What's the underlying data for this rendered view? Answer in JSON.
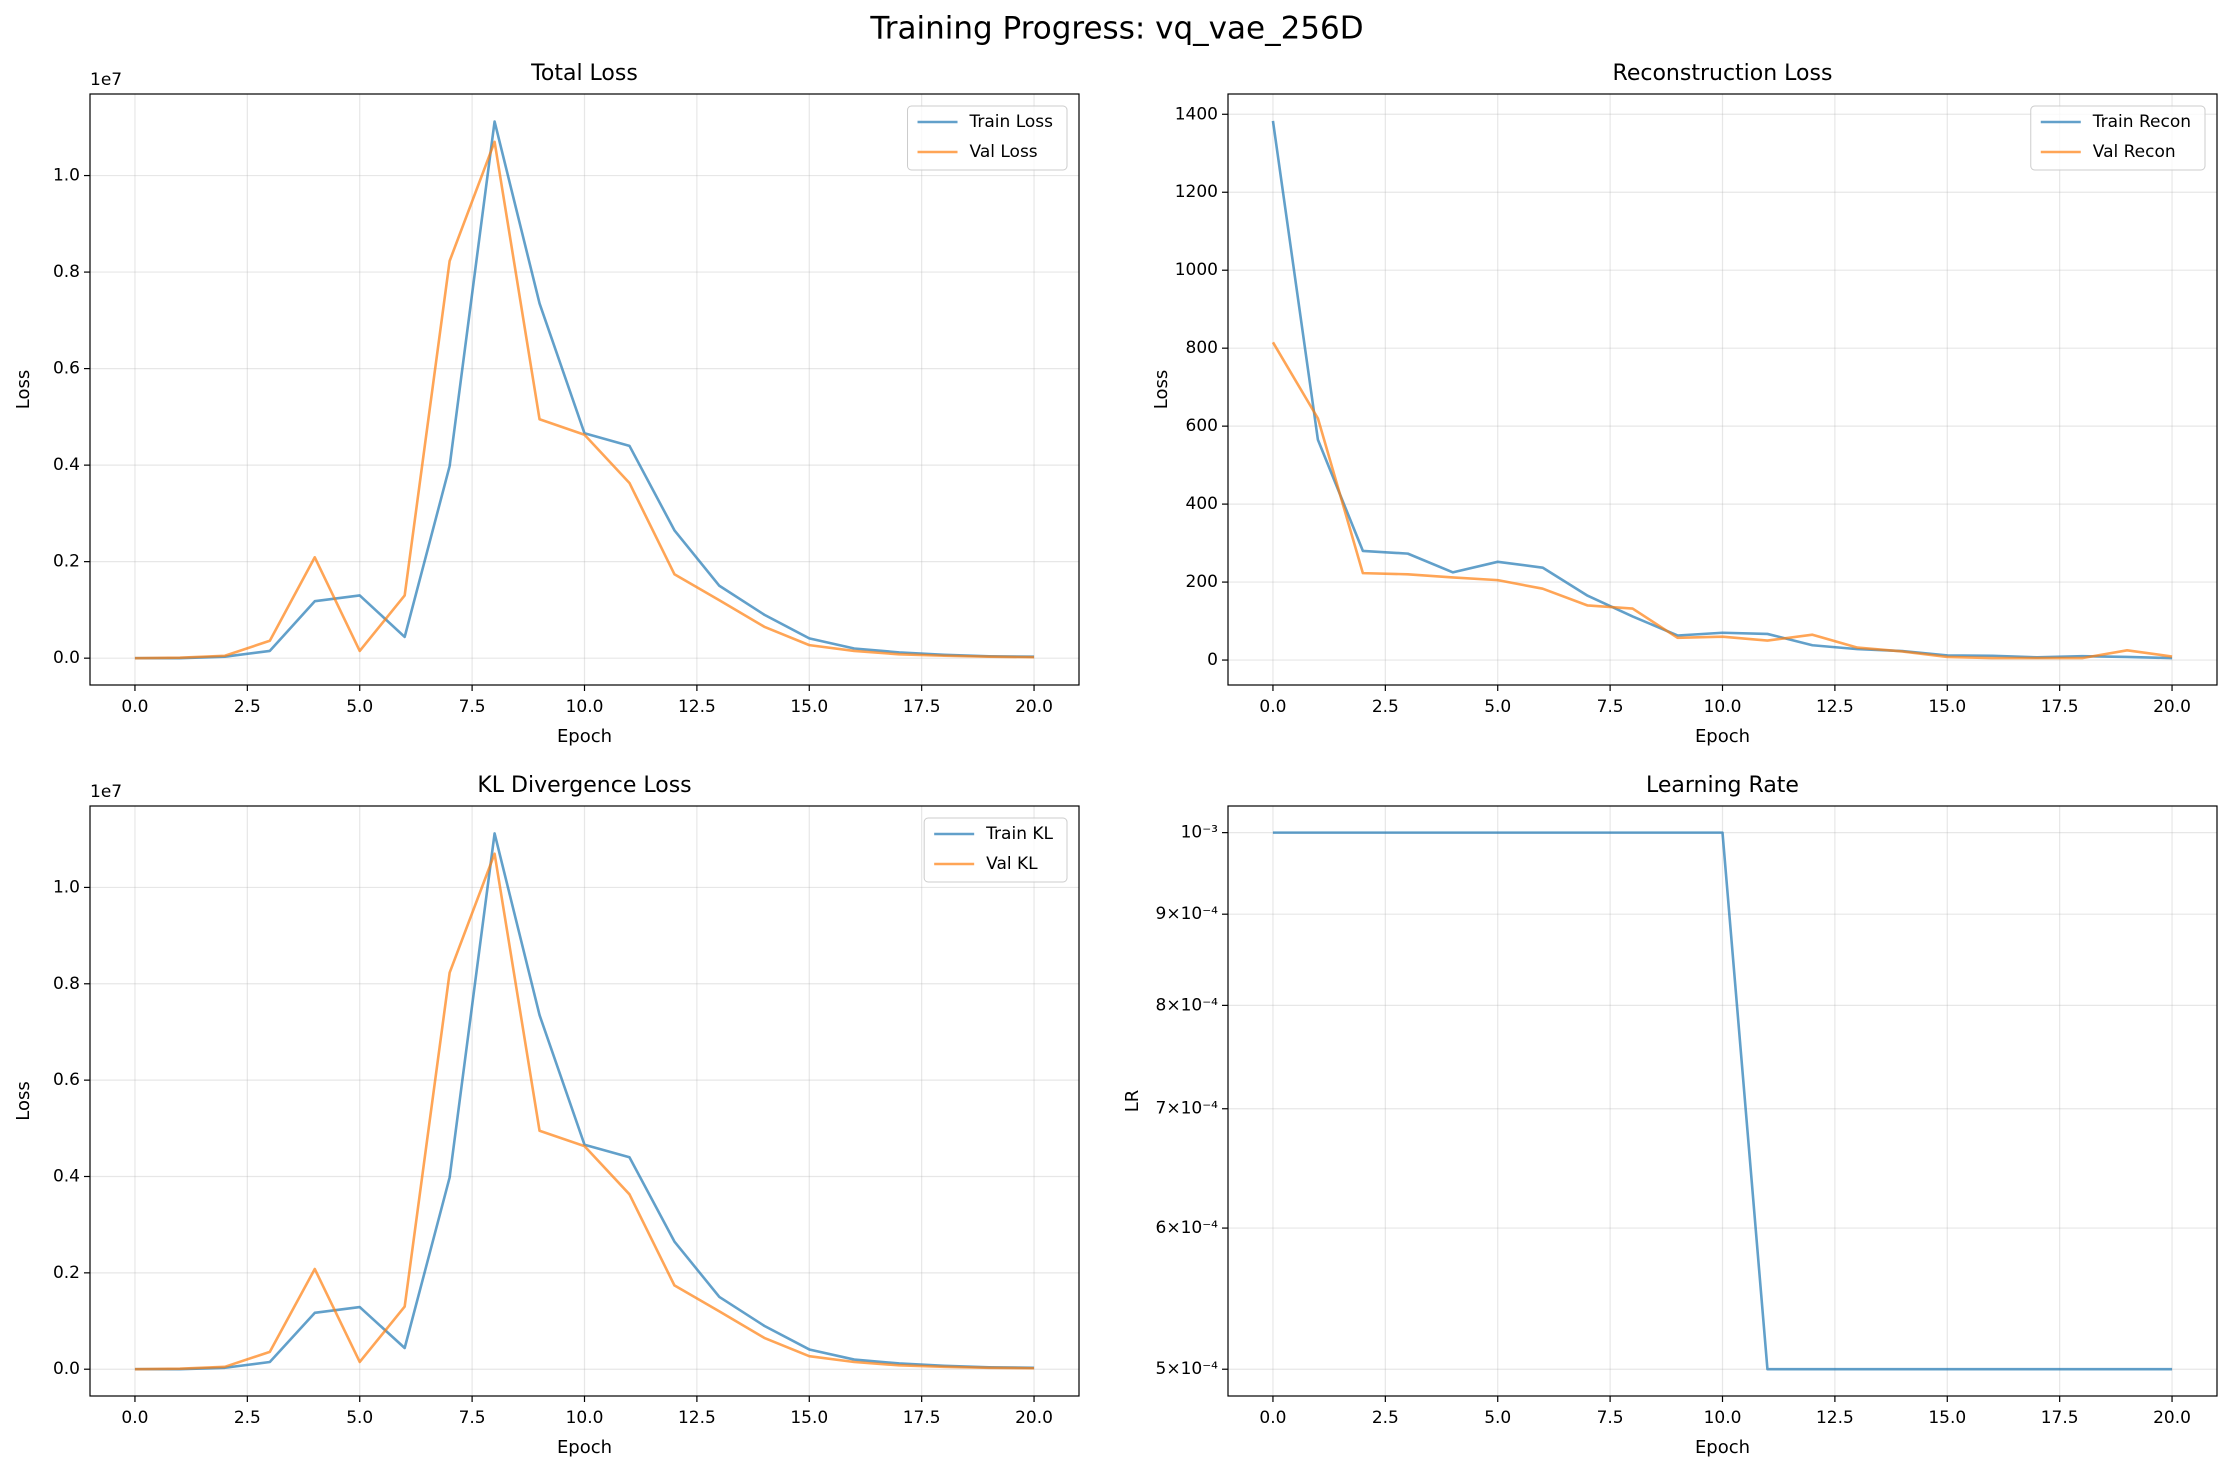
{
  "title": "Training Progress: vq_vae_256D",
  "chart_data": [
    {
      "type": "line",
      "title": "Total Loss",
      "x_label": "Epoch",
      "y_label": "Loss",
      "y_offset_label": "1e7",
      "x": [
        0,
        1,
        2,
        3,
        4,
        5,
        6,
        7,
        8,
        9,
        10,
        11,
        12,
        13,
        14,
        15,
        16,
        17,
        18,
        19,
        20
      ],
      "series": [
        {
          "name": "Train Loss",
          "color": "#1f77b4",
          "values": [
            0,
            0,
            30000,
            150000,
            1180000,
            1300000,
            440000,
            3980000,
            11120000,
            7350000,
            4660000,
            4400000,
            2650000,
            1500000,
            900000,
            410000,
            200000,
            120000,
            70000,
            40000,
            30000
          ]
        },
        {
          "name": "Val Loss",
          "color": "#ff7f0e",
          "values": [
            0,
            10000,
            50000,
            360000,
            2090000,
            150000,
            1300000,
            8230000,
            10700000,
            4950000,
            4630000,
            3630000,
            1740000,
            1200000,
            650000,
            270000,
            150000,
            80000,
            50000,
            30000,
            20000
          ]
        }
      ],
      "xlim": [
        -1,
        21
      ],
      "ylim": [
        -556000,
        11690000
      ],
      "xticks": [
        {
          "value": 0,
          "label": "0.0"
        },
        {
          "value": 2.5,
          "label": "2.5"
        },
        {
          "value": 5,
          "label": "5.0"
        },
        {
          "value": 7.5,
          "label": "7.5"
        },
        {
          "value": 10,
          "label": "10.0"
        },
        {
          "value": 12.5,
          "label": "12.5"
        },
        {
          "value": 15,
          "label": "15.0"
        },
        {
          "value": 17.5,
          "label": "17.5"
        },
        {
          "value": 20,
          "label": "20.0"
        }
      ],
      "yticks": [
        {
          "value": 0,
          "label": "0.0"
        },
        {
          "value": 2000000,
          "label": "0.2"
        },
        {
          "value": 4000000,
          "label": "0.4"
        },
        {
          "value": 6000000,
          "label": "0.6"
        },
        {
          "value": 8000000,
          "label": "0.8"
        },
        {
          "value": 10000000,
          "label": "1.0"
        }
      ],
      "grid": true,
      "legend": "upper-right"
    },
    {
      "type": "line",
      "title": "Reconstruction Loss",
      "x_label": "Epoch",
      "y_label": "Loss",
      "x": [
        0,
        1,
        2,
        3,
        4,
        5,
        6,
        7,
        8,
        9,
        10,
        11,
        12,
        13,
        14,
        15,
        16,
        17,
        18,
        19,
        20
      ],
      "series": [
        {
          "name": "Train Recon",
          "color": "#1f77b4",
          "values": [
            1383,
            565,
            280,
            273,
            225,
            252,
            237,
            165,
            112,
            63,
            70,
            67,
            38,
            28,
            23,
            12,
            11,
            7,
            10,
            8,
            5
          ]
        },
        {
          "name": "Val Recon",
          "color": "#ff7f0e",
          "values": [
            815,
            620,
            223,
            220,
            212,
            205,
            183,
            140,
            132,
            57,
            60,
            50,
            65,
            32,
            22,
            8,
            5,
            5,
            5,
            25,
            9
          ]
        }
      ],
      "xlim": [
        -1,
        21
      ],
      "ylim": [
        -64,
        1452
      ],
      "xticks": [
        {
          "value": 0,
          "label": "0.0"
        },
        {
          "value": 2.5,
          "label": "2.5"
        },
        {
          "value": 5,
          "label": "5.0"
        },
        {
          "value": 7.5,
          "label": "7.5"
        },
        {
          "value": 10,
          "label": "10.0"
        },
        {
          "value": 12.5,
          "label": "12.5"
        },
        {
          "value": 15,
          "label": "15.0"
        },
        {
          "value": 17.5,
          "label": "17.5"
        },
        {
          "value": 20,
          "label": "20.0"
        }
      ],
      "yticks": [
        0,
        200,
        400,
        600,
        800,
        1000,
        1200,
        1400
      ],
      "grid": true,
      "legend": "upper-right"
    },
    {
      "type": "line",
      "title": "KL Divergence Loss",
      "x_label": "Epoch",
      "y_label": "Loss",
      "y_offset_label": "1e7",
      "x": [
        0,
        1,
        2,
        3,
        4,
        5,
        6,
        7,
        8,
        9,
        10,
        11,
        12,
        13,
        14,
        15,
        16,
        17,
        18,
        19,
        20
      ],
      "series": [
        {
          "name": "Train KL",
          "color": "#1f77b4",
          "values": [
            0,
            0,
            30000,
            150000,
            1170000,
            1290000,
            440000,
            3980000,
            11120000,
            7350000,
            4660000,
            4400000,
            2650000,
            1500000,
            900000,
            410000,
            200000,
            120000,
            70000,
            40000,
            30000
          ]
        },
        {
          "name": "Val KL",
          "color": "#ff7f0e",
          "values": [
            0,
            10000,
            50000,
            360000,
            2080000,
            150000,
            1300000,
            8230000,
            10700000,
            4950000,
            4630000,
            3630000,
            1740000,
            1200000,
            650000,
            270000,
            150000,
            80000,
            50000,
            30000,
            20000
          ]
        }
      ],
      "xlim": [
        -1,
        21
      ],
      "ylim": [
        -556000,
        11690000
      ],
      "xticks": [
        {
          "value": 0,
          "label": "0.0"
        },
        {
          "value": 2.5,
          "label": "2.5"
        },
        {
          "value": 5,
          "label": "5.0"
        },
        {
          "value": 7.5,
          "label": "7.5"
        },
        {
          "value": 10,
          "label": "10.0"
        },
        {
          "value": 12.5,
          "label": "12.5"
        },
        {
          "value": 15,
          "label": "15.0"
        },
        {
          "value": 17.5,
          "label": "17.5"
        },
        {
          "value": 20,
          "label": "20.0"
        }
      ],
      "yticks": [
        {
          "value": 0,
          "label": "0.0"
        },
        {
          "value": 2000000,
          "label": "0.2"
        },
        {
          "value": 4000000,
          "label": "0.4"
        },
        {
          "value": 6000000,
          "label": "0.6"
        },
        {
          "value": 8000000,
          "label": "0.8"
        },
        {
          "value": 10000000,
          "label": "1.0"
        }
      ],
      "grid": true,
      "legend": "upper-right"
    },
    {
      "type": "line",
      "title": "Learning Rate",
      "x_label": "Epoch",
      "y_label": "LR",
      "y_scale": "log",
      "x": [
        0,
        1,
        2,
        3,
        4,
        5,
        6,
        7,
        8,
        9,
        10,
        11,
        12,
        13,
        14,
        15,
        16,
        17,
        18,
        19,
        20
      ],
      "series": [
        {
          "color": "#1f77b4",
          "values": [
            0.001,
            0.001,
            0.001,
            0.001,
            0.001,
            0.001,
            0.001,
            0.001,
            0.001,
            0.001,
            0.001,
            0.0005,
            0.0005,
            0.0005,
            0.0005,
            0.0005,
            0.0005,
            0.0005,
            0.0005,
            0.0005,
            0.0005
          ]
        }
      ],
      "xlim": [
        -1,
        21
      ],
      "ylim": [
        0.000483,
        0.001035
      ],
      "xticks": [
        {
          "value": 0,
          "label": "0.0"
        },
        {
          "value": 2.5,
          "label": "2.5"
        },
        {
          "value": 5,
          "label": "5.0"
        },
        {
          "value": 7.5,
          "label": "7.5"
        },
        {
          "value": 10,
          "label": "10.0"
        },
        {
          "value": 12.5,
          "label": "12.5"
        },
        {
          "value": 15,
          "label": "15.0"
        },
        {
          "value": 17.5,
          "label": "17.5"
        },
        {
          "value": 20,
          "label": "20.0"
        }
      ],
      "yticks": [
        {
          "value": 0.001,
          "label": "10⁻³"
        },
        {
          "value": 0.0009,
          "label": "9×10⁻⁴"
        },
        {
          "value": 0.0008,
          "label": "8×10⁻⁴"
        },
        {
          "value": 0.0007,
          "label": "7×10⁻⁴"
        },
        {
          "value": 0.0006,
          "label": "6×10⁻⁴"
        },
        {
          "value": 0.0005,
          "label": "5×10⁻⁴"
        }
      ],
      "grid": true
    }
  ]
}
